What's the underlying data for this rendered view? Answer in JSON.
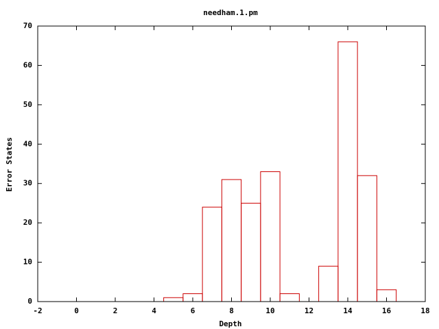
{
  "chart_data": {
    "type": "bar",
    "title": "needham.1.pm",
    "x_label": "Depth",
    "y_label": "Error States",
    "x": [
      5,
      6,
      7,
      8,
      9,
      10,
      11,
      13,
      14,
      15,
      16
    ],
    "values": [
      1,
      2,
      24,
      31,
      25,
      33,
      2,
      9,
      66,
      32,
      3
    ],
    "color": "#cc0000",
    "xlim": [
      -2,
      18
    ],
    "xticks": [
      -2,
      0,
      2,
      4,
      6,
      8,
      10,
      12,
      14,
      16,
      18
    ],
    "ylim": [
      0,
      70
    ],
    "yticks": [
      0,
      10,
      20,
      30,
      40,
      50,
      60,
      70
    ]
  }
}
